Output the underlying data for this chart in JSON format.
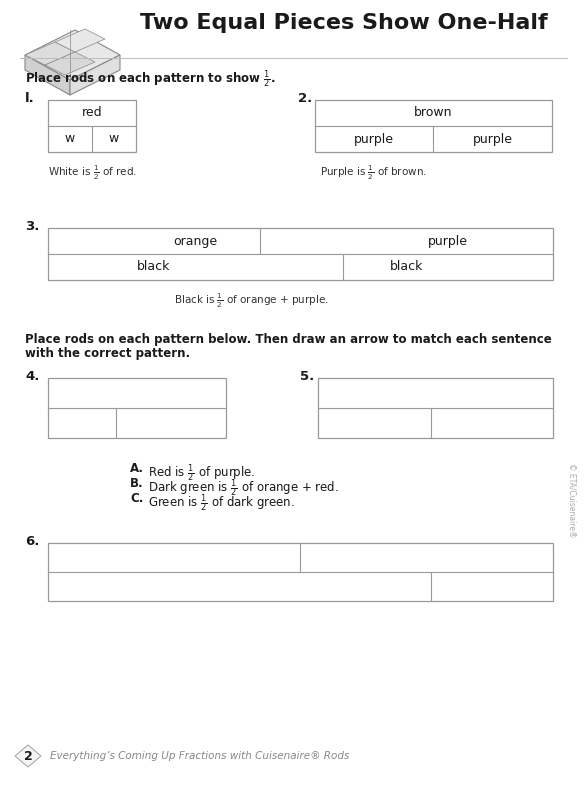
{
  "title": "Two Equal Pieces Show One-Half",
  "bg_color": "#ffffff",
  "page_number": "2",
  "footer_text": "Everything’s Coming Up Fractions with Cuisenaire® Rods",
  "line_color": "#bbbbbb",
  "box_line_color": "#999999",
  "text_color": "#1a1a1a",
  "caption_color": "#333333"
}
